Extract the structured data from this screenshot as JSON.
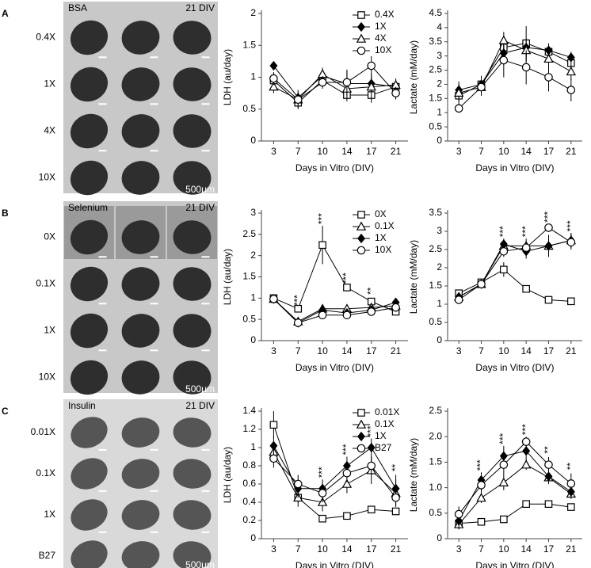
{
  "figure": {
    "panels": [
      {
        "label": "A",
        "images": {
          "title": "BSA",
          "time": "21 DIV",
          "rows": [
            "0.4X",
            "1X",
            "4X",
            "10X"
          ],
          "scale": "500μm"
        }
      },
      {
        "label": "B",
        "images": {
          "title": "Selenium",
          "time": "21 DIV",
          "rows": [
            "0X",
            "0.1X",
            "1X",
            "10X"
          ],
          "scale": "500μm"
        }
      },
      {
        "label": "C",
        "images": {
          "title": "Insulin",
          "time": "21 DIV",
          "rows": [
            "0.01X",
            "0.1X",
            "1X",
            "B27"
          ],
          "scale": "500μm"
        }
      }
    ]
  },
  "chart_data": [
    {
      "type": "line",
      "ylabel": "LDH (au/day)",
      "xlabel": "Days in Vitro (DIV)",
      "categories": [
        "3",
        "7",
        "10",
        "14",
        "17",
        "21"
      ],
      "ylim": [
        0,
        2
      ],
      "yticks": [
        0,
        0.5,
        1,
        1.5,
        2
      ],
      "legend": "upper right",
      "series": [
        {
          "name": "0.4X",
          "color": "#000000",
          "marker": "square",
          "filled": false,
          "values": [
            0.95,
            0.6,
            0.95,
            0.72,
            0.72,
            0.85
          ],
          "errors": [
            0.1,
            0.08,
            0.08,
            0.1,
            0.12,
            0.1
          ]
        },
        {
          "name": "1X",
          "color": "#000000",
          "marker": "diamond",
          "filled": true,
          "values": [
            1.18,
            0.68,
            1.02,
            0.9,
            0.9,
            0.85
          ],
          "errors": [
            0.05,
            0.08,
            0.08,
            0.2,
            0.12,
            0.08
          ]
        },
        {
          "name": "4X",
          "color": "#000000",
          "marker": "triangle",
          "filled": false,
          "values": [
            0.85,
            0.65,
            1.05,
            0.82,
            0.85,
            0.88
          ],
          "errors": [
            0.1,
            0.08,
            0.1,
            0.15,
            0.2,
            0.1
          ]
        },
        {
          "name": "10X",
          "color": "#000000",
          "marker": "circle",
          "filled": false,
          "values": [
            0.98,
            0.65,
            0.92,
            0.92,
            1.18,
            0.75
          ],
          "errors": [
            0.1,
            0.15,
            0.1,
            0.2,
            0.15,
            0.1
          ]
        }
      ]
    },
    {
      "type": "line",
      "ylabel": "Lactate (mM/day)",
      "xlabel": "Days in Vitro (DIV)",
      "categories": [
        "3",
        "7",
        "10",
        "14",
        "17",
        "21"
      ],
      "ylim": [
        0,
        4.5
      ],
      "yticks": [
        0,
        0.5,
        1,
        1.5,
        2,
        2.5,
        3,
        3.5,
        4,
        4.5
      ],
      "series": [
        {
          "color": "#000000",
          "marker": "square",
          "filled": false,
          "values": [
            1.6,
            2.0,
            3.3,
            3.45,
            3.15,
            2.75
          ],
          "errors": [
            0.3,
            0.3,
            0.3,
            0.6,
            0.3,
            0.3
          ]
        },
        {
          "color": "#000000",
          "marker": "diamond",
          "filled": true,
          "values": [
            1.8,
            2.0,
            3.1,
            3.3,
            3.2,
            2.95
          ],
          "errors": [
            0.3,
            0.2,
            0.4,
            0.3,
            0.2,
            0.2
          ]
        },
        {
          "color": "#000000",
          "marker": "triangle",
          "filled": false,
          "values": [
            1.7,
            1.9,
            3.55,
            3.2,
            2.9,
            2.45
          ],
          "errors": [
            0.3,
            0.3,
            0.3,
            0.4,
            0.3,
            0.3
          ]
        },
        {
          "color": "#000000",
          "marker": "circle",
          "filled": false,
          "values": [
            1.15,
            1.9,
            2.85,
            2.6,
            2.25,
            1.8
          ],
          "errors": [
            0.1,
            0.3,
            0.6,
            0.6,
            0.5,
            0.4
          ]
        }
      ]
    },
    {
      "type": "line",
      "ylabel": "LDH (au/day)",
      "xlabel": "Days in Vitro (DIV)",
      "categories": [
        "3",
        "7",
        "10",
        "14",
        "17",
        "21"
      ],
      "ylim": [
        0,
        3
      ],
      "yticks": [
        0,
        0.5,
        1,
        1.5,
        2,
        2.5,
        3
      ],
      "legend": "upper right",
      "annotations": [
        {
          "at": "7",
          "text": "***"
        },
        {
          "at": "10",
          "text": "***"
        },
        {
          "at": "14",
          "text": "***"
        },
        {
          "at": "17",
          "text": "**"
        }
      ],
      "series": [
        {
          "name": "0X",
          "color": "#000000",
          "marker": "square",
          "filled": false,
          "values": [
            1.0,
            0.75,
            2.25,
            1.25,
            0.92,
            0.68
          ],
          "errors": [
            0.05,
            0.03,
            0.45,
            0.05,
            0.08,
            0.08
          ]
        },
        {
          "name": "0.1X",
          "color": "#000000",
          "marker": "triangle",
          "filled": false,
          "values": [
            0.98,
            0.45,
            0.75,
            0.75,
            0.78,
            0.82
          ],
          "errors": [
            0.05,
            0.05,
            0.05,
            0.05,
            0.08,
            0.1
          ]
        },
        {
          "name": "1X",
          "color": "#000000",
          "marker": "diamond",
          "filled": true,
          "values": [
            0.98,
            0.42,
            0.72,
            0.65,
            0.72,
            0.9
          ],
          "errors": [
            0.05,
            0.05,
            0.05,
            0.05,
            0.08,
            0.1
          ]
        },
        {
          "name": "10X",
          "color": "#000000",
          "marker": "circle",
          "filled": false,
          "values": [
            0.98,
            0.42,
            0.6,
            0.6,
            0.68,
            0.78
          ],
          "errors": [
            0.05,
            0.05,
            0.05,
            0.05,
            0.08,
            0.1
          ]
        }
      ]
    },
    {
      "type": "line",
      "ylabel": "Lactate (mM/day)",
      "xlabel": "Days in Vitro (DIV)",
      "categories": [
        "3",
        "7",
        "10",
        "14",
        "17",
        "21"
      ],
      "ylim": [
        0,
        3.5
      ],
      "yticks": [
        0,
        0.5,
        1,
        1.5,
        2,
        2.5,
        3,
        3.5
      ],
      "annotations": [
        {
          "at": "10",
          "text": "***"
        },
        {
          "at": "14",
          "text": "***"
        },
        {
          "at": "17",
          "text": "***"
        },
        {
          "at": "21",
          "text": "***"
        }
      ],
      "series": [
        {
          "color": "#000000",
          "marker": "square",
          "filled": false,
          "values": [
            1.3,
            1.6,
            1.95,
            1.42,
            1.12,
            1.08
          ],
          "errors": [
            0.1,
            0.05,
            0.2,
            0.1,
            0.1,
            0.05
          ]
        },
        {
          "color": "#000000",
          "marker": "triangle",
          "filled": false,
          "values": [
            1.2,
            1.55,
            2.6,
            2.6,
            2.6,
            2.75
          ],
          "errors": [
            0.05,
            0.05,
            0.15,
            0.2,
            0.3,
            0.2
          ]
        },
        {
          "color": "#000000",
          "marker": "diamond",
          "filled": true,
          "values": [
            1.2,
            1.55,
            2.65,
            2.45,
            2.6,
            2.75
          ],
          "errors": [
            0.05,
            0.05,
            0.15,
            0.2,
            0.3,
            0.2
          ]
        },
        {
          "color": "#000000",
          "marker": "circle",
          "filled": false,
          "values": [
            1.12,
            1.55,
            2.45,
            2.55,
            3.1,
            2.7
          ],
          "errors": [
            0.05,
            0.05,
            0.15,
            0.15,
            0.1,
            0.2
          ]
        }
      ]
    },
    {
      "type": "line",
      "ylabel": "LDH (au/day)",
      "xlabel": "Days in Vitro (DIV)",
      "categories": [
        "3",
        "7",
        "10",
        "14",
        "17",
        "21"
      ],
      "ylim": [
        0,
        1.4
      ],
      "yticks": [
        0,
        0.2,
        0.4,
        0.6,
        0.8,
        1,
        1.2,
        1.4
      ],
      "legend": "upper right",
      "annotations": [
        {
          "at": "10",
          "text": "***"
        },
        {
          "at": "14",
          "text": "***"
        },
        {
          "at": "17",
          "text": "***"
        },
        {
          "at": "21",
          "text": "**"
        }
      ],
      "series": [
        {
          "name": "0.01X",
          "color": "#000000",
          "marker": "square",
          "filled": false,
          "values": [
            1.25,
            0.45,
            0.22,
            0.25,
            0.32,
            0.3
          ],
          "errors": [
            0.15,
            0.05,
            0.03,
            0.03,
            0.03,
            0.03
          ]
        },
        {
          "name": "0.1X",
          "color": "#000000",
          "marker": "triangle",
          "filled": false,
          "values": [
            0.95,
            0.45,
            0.4,
            0.6,
            0.75,
            0.5
          ],
          "errors": [
            0.1,
            0.1,
            0.1,
            0.1,
            0.15,
            0.15
          ]
        },
        {
          "name": "1X",
          "color": "#000000",
          "marker": "diamond",
          "filled": true,
          "values": [
            1.02,
            0.55,
            0.55,
            0.8,
            1.0,
            0.55
          ],
          "errors": [
            0.1,
            0.1,
            0.1,
            0.1,
            0.1,
            0.15
          ]
        },
        {
          "name": "B27",
          "color": "#000000",
          "marker": "circle",
          "filled": false,
          "values": [
            0.88,
            0.6,
            0.5,
            0.72,
            0.8,
            0.45
          ],
          "errors": [
            0.1,
            0.1,
            0.1,
            0.1,
            0.1,
            0.1
          ]
        }
      ]
    },
    {
      "type": "line",
      "ylabel": "Lactate (mM/day)",
      "xlabel": "Days in Vitro (DIV)",
      "categories": [
        "3",
        "7",
        "10",
        "14",
        "17",
        "21"
      ],
      "ylim": [
        0,
        2.5
      ],
      "yticks": [
        0,
        0.5,
        {
          "value": 1,
          "label": "1.0"
        },
        1.5,
        {
          "value": 2,
          "label": "2.0"
        },
        2.5
      ],
      "annotations": [
        {
          "at": "7",
          "text": "***"
        },
        {
          "at": "10",
          "text": "***"
        },
        {
          "at": "14",
          "text": "***"
        },
        {
          "at": "17",
          "text": "**"
        },
        {
          "at": "21",
          "text": "**"
        }
      ],
      "series": [
        {
          "color": "#000000",
          "marker": "square",
          "filled": false,
          "values": [
            0.3,
            0.33,
            0.38,
            0.68,
            0.68,
            0.62
          ],
          "errors": [
            0.05,
            0.03,
            0.03,
            0.03,
            0.03,
            0.05
          ]
        },
        {
          "color": "#000000",
          "marker": "triangle",
          "filled": false,
          "values": [
            0.28,
            0.8,
            1.1,
            1.45,
            1.2,
            0.88
          ],
          "errors": [
            0.1,
            0.1,
            0.15,
            0.1,
            0.1,
            0.1
          ]
        },
        {
          "color": "#000000",
          "marker": "diamond",
          "filled": true,
          "values": [
            0.35,
            1.15,
            1.62,
            1.72,
            1.22,
            0.92
          ],
          "errors": [
            0.15,
            0.15,
            0.2,
            0.2,
            0.15,
            0.1
          ]
        },
        {
          "color": "#000000",
          "marker": "circle",
          "filled": false,
          "values": [
            0.48,
            1.05,
            1.45,
            1.9,
            1.45,
            1.08
          ],
          "errors": [
            0.15,
            0.15,
            0.2,
            0.1,
            0.15,
            0.2
          ]
        }
      ]
    }
  ]
}
